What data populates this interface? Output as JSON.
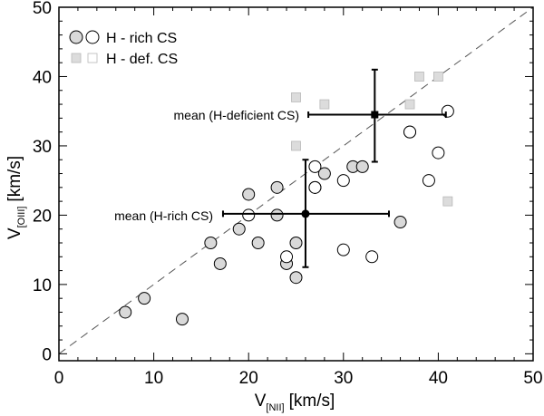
{
  "chart_data": {
    "type": "scatter",
    "title": "",
    "xlabel": {
      "main": "V",
      "sub": "[NII]",
      "unit": "[km/s]"
    },
    "ylabel": {
      "main": "V",
      "sub": "[OIII]",
      "unit": "[km/s]"
    },
    "xlim": [
      0,
      50
    ],
    "ylim": [
      -1,
      50
    ],
    "xticks": [
      0,
      10,
      20,
      30,
      40,
      50
    ],
    "yticks": [
      0,
      10,
      20,
      30,
      40,
      50
    ],
    "grid": false,
    "legend_position": "top-left",
    "legend": [
      {
        "label": "H - rich CS",
        "marker": "circle"
      },
      {
        "label": "H - def. CS",
        "marker": "square"
      }
    ],
    "reference_line": {
      "type": "one-to-one",
      "style": "dashed"
    },
    "colors": {
      "filled": "#d9d9d9",
      "hollow": "#ffffff",
      "square": "#dcdcdc",
      "square_edge": "#b8b8b8",
      "line": "#000000",
      "dash": "#555555"
    },
    "series": [
      {
        "name": "H-rich CS (filled)",
        "marker": "circle-filled",
        "points": [
          [
            7,
            6
          ],
          [
            9,
            8
          ],
          [
            13,
            5
          ],
          [
            16,
            16
          ],
          [
            17,
            13
          ],
          [
            19,
            18
          ],
          [
            20,
            23
          ],
          [
            21,
            16
          ],
          [
            23,
            24
          ],
          [
            23,
            20
          ],
          [
            24,
            13
          ],
          [
            25,
            16
          ],
          [
            25,
            11
          ],
          [
            27,
            24
          ],
          [
            28,
            26
          ],
          [
            31,
            27
          ],
          [
            32,
            27
          ],
          [
            36,
            19
          ],
          [
            37,
            32
          ]
        ]
      },
      {
        "name": "H-rich CS (open)",
        "marker": "circle-open",
        "points": [
          [
            20,
            20
          ],
          [
            24,
            14
          ],
          [
            27,
            27
          ],
          [
            27,
            24
          ],
          [
            30,
            25
          ],
          [
            30,
            15
          ],
          [
            33,
            14
          ],
          [
            37,
            32
          ],
          [
            39,
            25
          ],
          [
            40,
            29
          ],
          [
            41,
            35
          ]
        ]
      },
      {
        "name": "H-def. CS",
        "marker": "square",
        "points": [
          [
            25,
            37
          ],
          [
            25,
            30
          ],
          [
            28,
            36
          ],
          [
            37,
            36
          ],
          [
            38,
            40
          ],
          [
            40,
            40
          ],
          [
            41,
            22
          ]
        ]
      }
    ],
    "means": [
      {
        "label": "mean (H-deficient CS)",
        "marker": "square",
        "x": 33.3,
        "y": 34.5,
        "xerr": [
          26.3,
          40.8
        ],
        "yerr": [
          27.7,
          41.0
        ]
      },
      {
        "label": "mean (H-rich CS)",
        "marker": "circle",
        "x": 26.0,
        "y": 20.2,
        "xerr": [
          17.3,
          34.8
        ],
        "yerr": [
          12.5,
          28.0
        ]
      }
    ]
  }
}
